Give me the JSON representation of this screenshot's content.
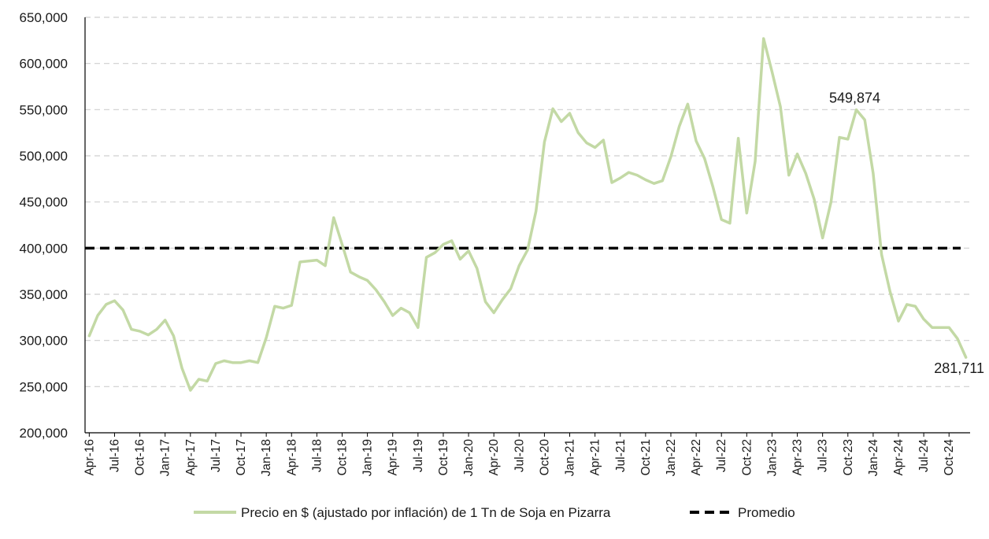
{
  "chart_data": {
    "type": "line",
    "title": "",
    "xlabel": "",
    "ylabel": "",
    "ylim": [
      200000,
      650000
    ],
    "y_ticks": [
      200000,
      250000,
      300000,
      350000,
      400000,
      450000,
      500000,
      550000,
      600000,
      650000
    ],
    "y_tick_labels": [
      "200,000",
      "250,000",
      "300,000",
      "350,000",
      "400,000",
      "450,000",
      "500,000",
      "550,000",
      "600,000",
      "650,000"
    ],
    "grid": "horizontal dashed",
    "legend_position": "bottom",
    "x_start": "Apr-16",
    "x_end": "Dec-24",
    "x_tick_labels": [
      "Apr-16",
      "Jul-16",
      "Oct-16",
      "Jan-17",
      "Apr-17",
      "Jul-17",
      "Oct-17",
      "Jan-18",
      "Apr-18",
      "Jul-18",
      "Oct-18",
      "Jan-19",
      "Apr-19",
      "Jul-19",
      "Oct-19",
      "Jan-20",
      "Apr-20",
      "Jul-20",
      "Oct-20",
      "Jan-21",
      "Apr-21",
      "Jul-21",
      "Oct-21",
      "Jan-22",
      "Apr-22",
      "Jul-22",
      "Oct-22",
      "Jan-23",
      "Apr-23",
      "Jul-23",
      "Oct-23",
      "Jan-24",
      "Apr-24",
      "Jul-24",
      "Oct-24"
    ],
    "series": [
      {
        "name": "Precio en $ (ajustado por inflación) de 1 Tn de Soja en Pizarra",
        "color": "#c3d9a5",
        "style": "solid",
        "values": [
          305000,
          327000,
          339000,
          343000,
          333000,
          312000,
          310000,
          306000,
          312000,
          322000,
          305000,
          270000,
          246000,
          258000,
          256000,
          275000,
          278000,
          276000,
          276000,
          278000,
          276000,
          303000,
          337000,
          335000,
          338000,
          385000,
          386000,
          387000,
          381000,
          433000,
          404000,
          374000,
          369000,
          365000,
          355000,
          342000,
          327000,
          335000,
          330000,
          314000,
          390000,
          395000,
          404000,
          408000,
          388000,
          397000,
          378000,
          342000,
          330000,
          344000,
          356000,
          381000,
          398000,
          440000,
          515000,
          551000,
          537000,
          546000,
          525000,
          514000,
          509000,
          517000,
          471000,
          476000,
          482000,
          479000,
          474000,
          470000,
          473000,
          499000,
          532000,
          556000,
          516000,
          497000,
          466000,
          431000,
          427000,
          519000,
          438000,
          494000,
          627000,
          591000,
          553000,
          479000,
          502000,
          481000,
          453000,
          411000,
          450000,
          520000,
          518000,
          549874,
          539000,
          481000,
          393000,
          353000,
          321000,
          339000,
          337000,
          323000,
          314000,
          314000,
          314000,
          302000,
          281711
        ]
      },
      {
        "name": "Promedio",
        "color": "#000000",
        "style": "dashed",
        "value": 400000
      }
    ],
    "annotations": [
      {
        "text": "549,874",
        "x": "Nov-23",
        "y": 549874
      },
      {
        "text": "281,711",
        "x": "Dec-24",
        "y": 281711
      }
    ]
  }
}
